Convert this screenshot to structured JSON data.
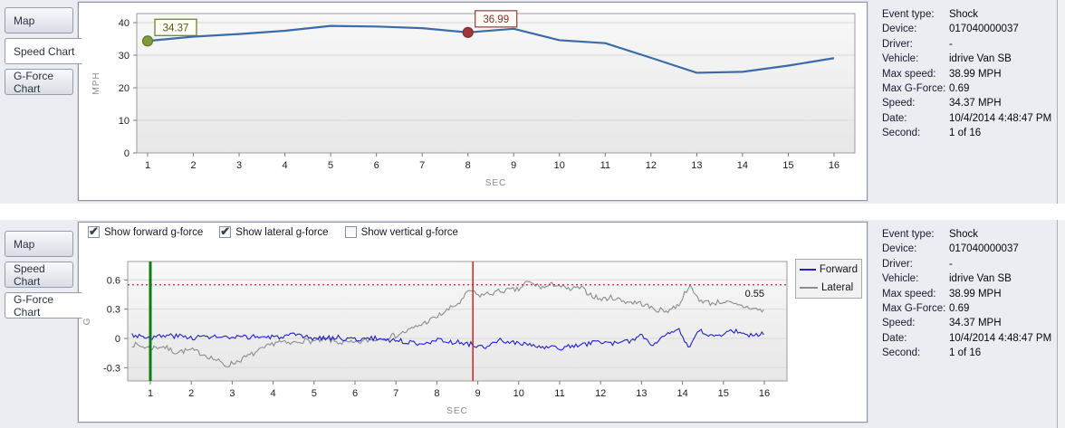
{
  "tabs": [
    "Map",
    "Speed Chart",
    "G-Force Chart"
  ],
  "panels": {
    "speed": {
      "selected_tab": "Speed Chart"
    },
    "gforce": {
      "selected_tab": "G-Force Chart"
    }
  },
  "gforce_controls": [
    {
      "label": "Show forward g-force",
      "checked": true
    },
    {
      "label": "Show lateral g-force",
      "checked": true
    },
    {
      "label": "Show vertical g-force",
      "checked": false
    }
  ],
  "info": {
    "rows": [
      {
        "label": "Event type:",
        "value": "Shock"
      },
      {
        "label": "Device:",
        "value": "017040000037"
      },
      {
        "label": "Driver:",
        "value": "-"
      },
      {
        "label": "Vehicle:",
        "value": "idrive Van SB"
      },
      {
        "label": "Max speed:",
        "value": "38.99 MPH"
      },
      {
        "label": "Max G-Force:",
        "value": "0.69"
      },
      {
        "label": "Speed:",
        "value": "34.37 MPH"
      },
      {
        "label": "Date:",
        "value": "10/4/2014 4:48:47 PM"
      },
      {
        "label": "Second:",
        "value": "1 of 16"
      }
    ]
  },
  "chart_data": [
    {
      "type": "line",
      "title": "Speed Chart",
      "xlabel": "SEC",
      "ylabel": "MPH",
      "x": [
        1,
        2,
        3,
        4,
        5,
        6,
        7,
        8,
        9,
        10,
        11,
        12,
        13,
        14,
        15,
        16
      ],
      "series": [
        {
          "name": "Speed",
          "color": "#3a6ca8",
          "values": [
            34.37,
            35.7,
            36.5,
            37.5,
            38.99,
            38.8,
            38.3,
            36.99,
            38.1,
            34.6,
            33.7,
            29.2,
            24.6,
            24.9,
            26.8,
            29.1
          ]
        }
      ],
      "ylim": [
        0,
        40
      ],
      "y_ticks": [
        0,
        10,
        20,
        30,
        40
      ],
      "x_ticks": [
        1,
        2,
        3,
        4,
        5,
        6,
        7,
        8,
        9,
        10,
        11,
        12,
        13,
        14,
        15,
        16
      ],
      "grid": true,
      "legend_position": "none",
      "annotations": [
        {
          "x": 1,
          "y": 34.37,
          "label": "34.37",
          "line_color": "#5f7c20",
          "text_color": "#4c5a16",
          "dot_fill": "#7d9b3c",
          "dot_stroke": "#5e7a23"
        },
        {
          "x": 8,
          "y": 36.99,
          "label": "36.99",
          "line_color": "#8e3b3b",
          "text_color": "#7e2f2f",
          "dot_fill": "#a03636",
          "dot_stroke": "#7e2828"
        }
      ]
    },
    {
      "type": "line",
      "title": "G-Force Chart",
      "xlabel": "SEC",
      "ylabel": "G",
      "ylim": [
        -0.44,
        0.79
      ],
      "y_ticks": [
        -0.3,
        0,
        0.3,
        0.6
      ],
      "x_ticks": [
        1,
        2,
        3,
        4,
        5,
        6,
        7,
        8,
        9,
        10,
        11,
        12,
        13,
        14,
        15,
        16
      ],
      "grid": true,
      "legend_position": "right",
      "legend": [
        {
          "name": "Forward",
          "color": "#2121cc"
        },
        {
          "name": "Lateral",
          "color": "#8c8c8c"
        }
      ],
      "threshold_line": {
        "y": 0.55,
        "label": "0.55",
        "color": "#cc2222",
        "style": "dotted"
      },
      "vertical_markers": [
        {
          "x": 1,
          "color": "#0f7d0f",
          "width": 3
        },
        {
          "x": 8.88,
          "color": "#cc2222",
          "width": 1.5
        }
      ],
      "series": [
        {
          "name": "Lateral",
          "color": "#8c8c8c",
          "jitter": 0.028,
          "seed": 7,
          "points": [
            [
              0.55,
              -0.06
            ],
            [
              1,
              -0.1
            ],
            [
              1.3,
              -0.08
            ],
            [
              1.6,
              -0.14
            ],
            [
              2,
              -0.12
            ],
            [
              2.3,
              -0.16
            ],
            [
              2.6,
              -0.22
            ],
            [
              2.85,
              -0.28
            ],
            [
              3.1,
              -0.24
            ],
            [
              3.5,
              -0.16
            ],
            [
              3.8,
              -0.1
            ],
            [
              4.1,
              -0.03
            ],
            [
              4.4,
              -0.06
            ],
            [
              4.7,
              -0.02
            ],
            [
              5,
              -0.03
            ],
            [
              5.3,
              -0.01
            ],
            [
              5.6,
              -0.04
            ],
            [
              6,
              -0.05
            ],
            [
              6.3,
              -0.02
            ],
            [
              6.6,
              0
            ],
            [
              7,
              0.03
            ],
            [
              7.3,
              0.08
            ],
            [
              7.6,
              0.14
            ],
            [
              8,
              0.22
            ],
            [
              8.3,
              0.3
            ],
            [
              8.6,
              0.38
            ],
            [
              8.8,
              0.5
            ],
            [
              9,
              0.44
            ],
            [
              9.3,
              0.46
            ],
            [
              9.6,
              0.49
            ],
            [
              10,
              0.5
            ],
            [
              10.2,
              0.58
            ],
            [
              10.4,
              0.55
            ],
            [
              10.6,
              0.52
            ],
            [
              10.9,
              0.56
            ],
            [
              11.2,
              0.5
            ],
            [
              11.5,
              0.52
            ],
            [
              11.8,
              0.44
            ],
            [
              12,
              0.4
            ],
            [
              12.3,
              0.42
            ],
            [
              12.6,
              0.38
            ],
            [
              13,
              0.36
            ],
            [
              13.3,
              0.3
            ],
            [
              13.6,
              0.28
            ],
            [
              13.9,
              0.34
            ],
            [
              14.15,
              0.54
            ],
            [
              14.4,
              0.4
            ],
            [
              14.7,
              0.36
            ],
            [
              15,
              0.38
            ],
            [
              15.3,
              0.34
            ],
            [
              15.6,
              0.32
            ],
            [
              16,
              0.28
            ]
          ]
        },
        {
          "name": "Forward",
          "color": "#2121cc",
          "jitter": 0.026,
          "seed": 3,
          "points": [
            [
              0.55,
              0.04
            ],
            [
              1,
              0.01
            ],
            [
              1.5,
              0.03
            ],
            [
              2,
              0.01
            ],
            [
              2.5,
              0.02
            ],
            [
              3,
              0
            ],
            [
              3.5,
              0.02
            ],
            [
              4,
              0.01
            ],
            [
              4.5,
              0.03
            ],
            [
              5,
              0
            ],
            [
              5.5,
              0.01
            ],
            [
              6,
              -0.01
            ],
            [
              6.5,
              0
            ],
            [
              7,
              -0.02
            ],
            [
              7.5,
              -0.05
            ],
            [
              8,
              -0.02
            ],
            [
              8.5,
              -0.04
            ],
            [
              9,
              -0.07
            ],
            [
              9.2,
              -0.11
            ],
            [
              9.5,
              -0.02
            ],
            [
              10,
              -0.05
            ],
            [
              10.5,
              -0.09
            ],
            [
              11,
              -0.1
            ],
            [
              11.5,
              -0.07
            ],
            [
              12,
              -0.03
            ],
            [
              12.5,
              -0.06
            ],
            [
              13,
              0.03
            ],
            [
              13.3,
              -0.07
            ],
            [
              13.6,
              0.06
            ],
            [
              13.9,
              0.1
            ],
            [
              14.15,
              -0.12
            ],
            [
              14.4,
              0.08
            ],
            [
              14.7,
              0.02
            ],
            [
              15,
              0.05
            ],
            [
              15.3,
              0.08
            ],
            [
              15.6,
              0.03
            ],
            [
              16,
              0.05
            ]
          ]
        }
      ]
    }
  ]
}
